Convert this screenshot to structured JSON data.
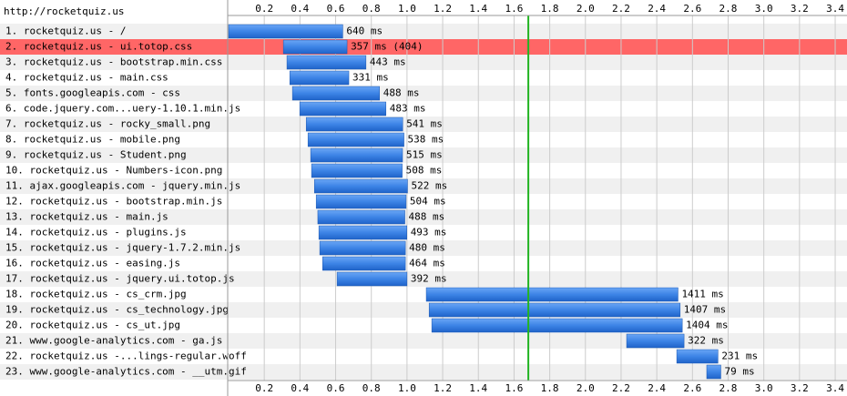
{
  "chart_data": {
    "type": "waterfall",
    "page_url": "http://rocketquiz.us",
    "categories": [
      "1. rocketquiz.us - /",
      "2. rocketquiz.us - ui.totop.css",
      "3. rocketquiz.us - bootstrap.min.css",
      "4. rocketquiz.us - main.css",
      "5. fonts.googleapis.com - css",
      "6. code.jquery.com...uery-1.10.1.min.js",
      "7. rocketquiz.us - rocky_small.png",
      "8. rocketquiz.us - mobile.png",
      "9. rocketquiz.us - Student.png",
      "10. rocketquiz.us - Numbers-icon.png",
      "11. ajax.googleapis.com - jquery.min.js",
      "12. rocketquiz.us - bootstrap.min.js",
      "13. rocketquiz.us - main.js",
      "14. rocketquiz.us - plugins.js",
      "15. rocketquiz.us - jquery-1.7.2.min.js",
      "16. rocketquiz.us - easing.js",
      "17. rocketquiz.us - jquery.ui.totop.js",
      "18. rocketquiz.us - cs_crm.jpg",
      "19. rocketquiz.us - cs_technology.jpg",
      "20. rocketquiz.us - cs_ut.jpg",
      "21. www.google-analytics.com - ga.js",
      "22. rocketquiz.us -...lings-regular.woff",
      "23. www.google-analytics.com - __utm.gif"
    ],
    "starts": [
      0,
      0.307,
      0.327,
      0.343,
      0.358,
      0.399,
      0.435,
      0.445,
      0.46,
      0.465,
      0.481,
      0.491,
      0.5,
      0.506,
      0.511,
      0.527,
      0.608,
      1.108,
      1.124,
      1.139,
      2.231,
      2.512,
      2.68
    ],
    "values": [
      0.64,
      0.357,
      0.443,
      0.331,
      0.488,
      0.483,
      0.541,
      0.538,
      0.515,
      0.508,
      0.522,
      0.504,
      0.488,
      0.493,
      0.48,
      0.464,
      0.392,
      1.411,
      1.407,
      1.404,
      0.322,
      0.231,
      0.079
    ],
    "value_labels": [
      "640 ms",
      "357 ms (404)",
      "443 ms",
      "331 ms",
      "488 ms",
      "483 ms",
      "541 ms",
      "538 ms",
      "515 ms",
      "508 ms",
      "522 ms",
      "504 ms",
      "488 ms",
      "493 ms",
      "480 ms",
      "464 ms",
      "392 ms",
      "1411 ms",
      "1407 ms",
      "1404 ms",
      "322 ms",
      "231 ms",
      "79 ms"
    ],
    "color": "#3d84e6",
    "highlighted": [
      1
    ],
    "highlight_color": "#ff6666",
    "marker": 1.68,
    "marker_color": "#22b422",
    "xlim": [
      0,
      3.456
    ],
    "xticks": [
      0.2,
      0.4,
      0.6,
      0.8,
      {
        "value": 1,
        "label": "1.0"
      },
      1.2,
      1.4,
      1.6,
      1.8,
      {
        "value": 2,
        "label": "2.0"
      },
      2.2,
      2.4,
      2.6,
      2.8,
      {
        "value": 3,
        "label": "3.0"
      },
      3.2,
      3.4
    ],
    "grid": true
  }
}
